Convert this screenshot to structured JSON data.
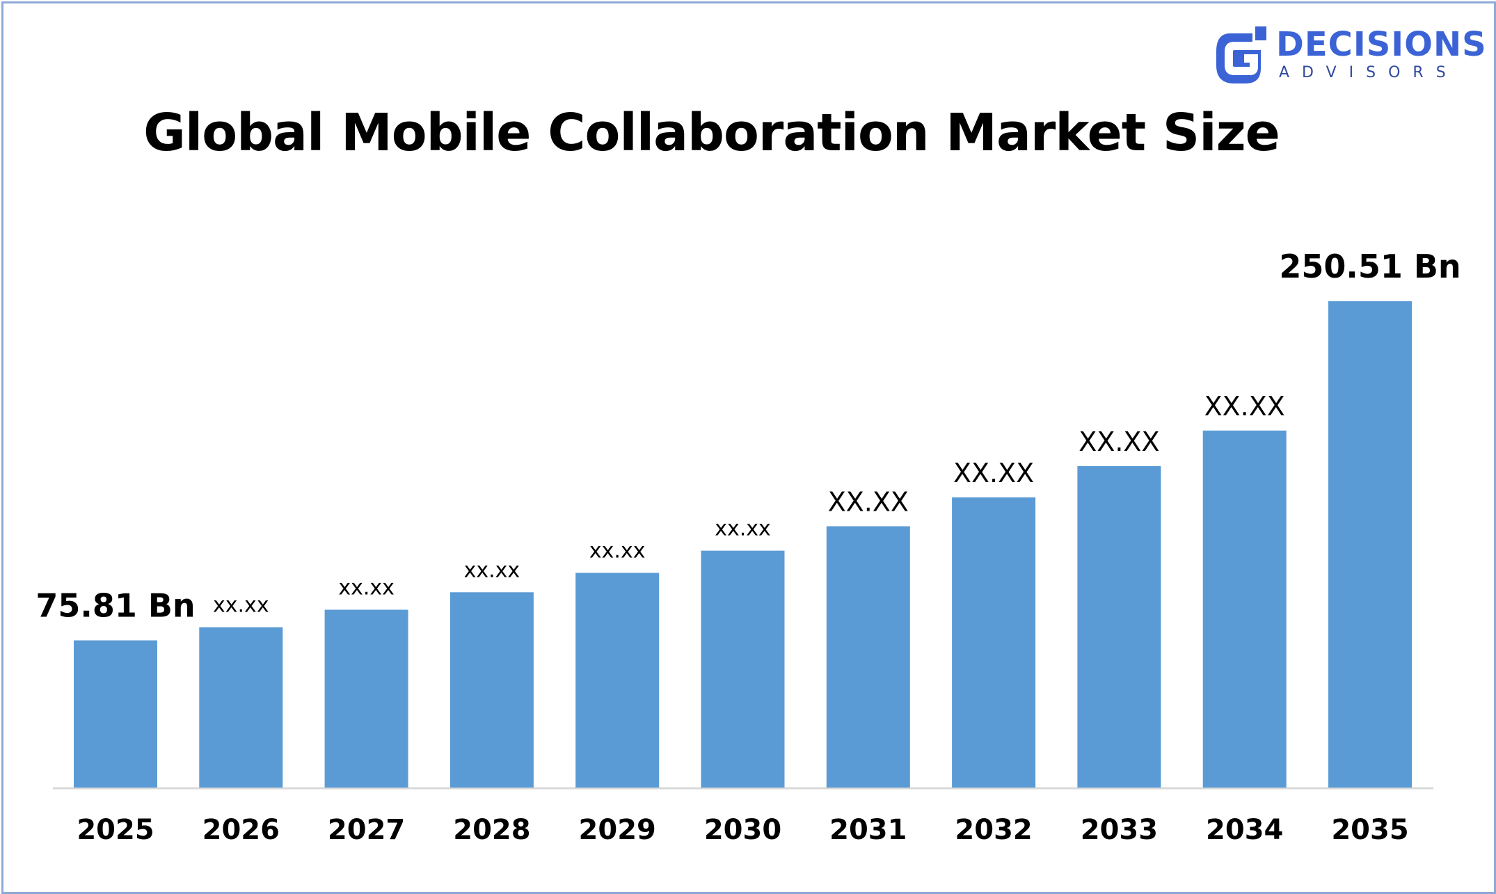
{
  "title": "Global Mobile Collaboration Market Size",
  "logo": {
    "name": "DECISIONS",
    "sub": "ADVISORS",
    "color": "#3b63d6",
    "sub_color": "#2f4a9e"
  },
  "colors": {
    "bar": "#5b9bd5",
    "axis": "#d9d9d9",
    "frame": "#8ea9d6"
  },
  "chart_data": {
    "type": "bar",
    "title": "Global Mobile Collaboration Market Size",
    "xlabel": "",
    "ylabel": "",
    "categories": [
      "2025",
      "2026",
      "2027",
      "2028",
      "2029",
      "2030",
      "2031",
      "2032",
      "2033",
      "2034",
      "2035"
    ],
    "values": [
      75.81,
      82.6,
      91.6,
      100.6,
      110.6,
      122.0,
      134.6,
      149.5,
      165.6,
      183.9,
      250.51
    ],
    "data_labels": [
      "75.81 Bn",
      "xx.xx",
      "xx.xx",
      "xx.xx",
      "xx.xx",
      "xx.xx",
      "XX.XX",
      "XX.XX",
      "XX.XX",
      "XX.XX",
      "250.51 Bn"
    ],
    "ylim": [
      0,
      250.51
    ],
    "grid": false,
    "legend": "none"
  }
}
